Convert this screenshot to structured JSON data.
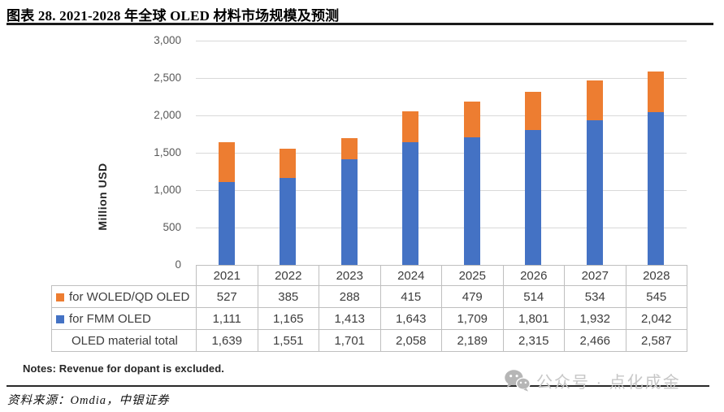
{
  "figure": {
    "title": "图表 28. 2021-2028 年全球 OLED 材料市场规模及预测",
    "notes": "Notes: Revenue for dopant is excluded.",
    "source": "资料来源：Omdia，中银证券"
  },
  "watermark": {
    "icon": "wechat-icon",
    "text": "公众号 · 点化成金"
  },
  "chart_data": {
    "type": "bar",
    "stacked": true,
    "title": "",
    "xlabel": "",
    "ylabel": "Million USD",
    "ylim": [
      0,
      3000
    ],
    "ytick_interval": 500,
    "ytick_labels": [
      "0",
      "500",
      "1,000",
      "1,500",
      "2,000",
      "2,500",
      "3,000"
    ],
    "grid": true,
    "legend_position": "in-table",
    "categories": [
      "2021",
      "2022",
      "2023",
      "2024",
      "2025",
      "2026",
      "2027",
      "2028"
    ],
    "series": [
      {
        "name": "for WOLED/QD OLED",
        "color": "#ED7D31",
        "values": [
          527,
          385,
          288,
          415,
          479,
          514,
          534,
          545
        ]
      },
      {
        "name": "for FMM OLED",
        "color": "#4472C4",
        "values": [
          1111,
          1165,
          1413,
          1643,
          1709,
          1801,
          1932,
          2042
        ]
      }
    ],
    "stack_bottom_to_top": [
      "for FMM OLED",
      "for WOLED/QD OLED"
    ],
    "totals": {
      "name": "OLED material total",
      "values": [
        1639,
        1551,
        1701,
        2058,
        2189,
        2315,
        2466,
        2587
      ]
    }
  }
}
